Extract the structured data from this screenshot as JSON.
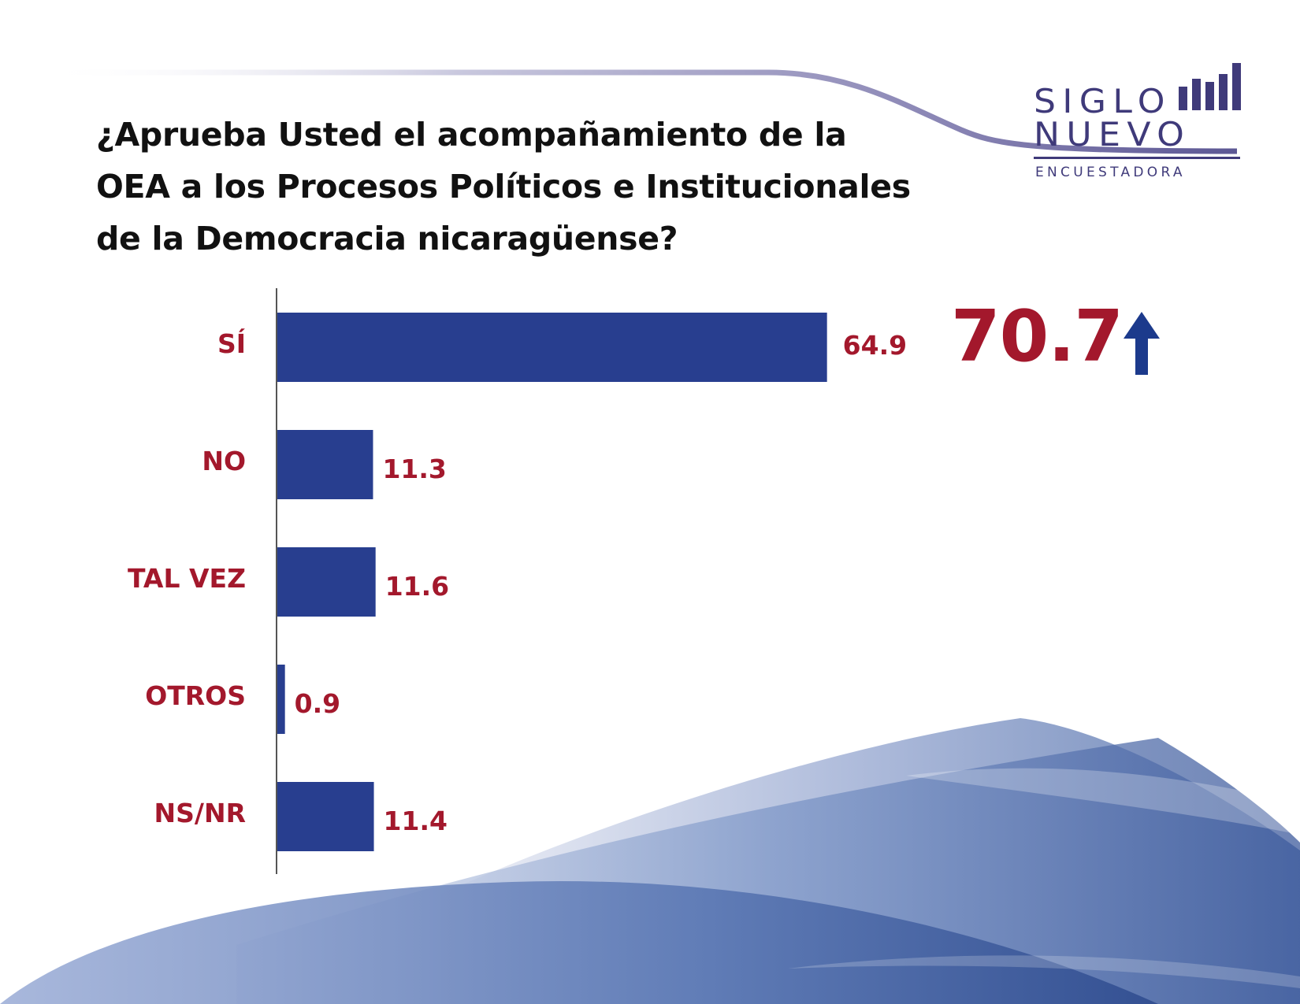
{
  "title_lines": [
    "¿Aprueba Usted el acompañamiento de la",
    "OEA a los Procesos Políticos e Institucionales",
    "de la Democracia nicaragüense?"
  ],
  "logo": {
    "word1": "SIGLO",
    "word2": "NUEVO",
    "word3": "ENCUESTADORA",
    "color": "#3f3a7a"
  },
  "highlight": {
    "value": "70.7",
    "icon": "up-arrow-icon",
    "color": "#a3182c"
  },
  "chart_data": {
    "type": "bar",
    "orientation": "horizontal",
    "categories": [
      "SÍ",
      "NO",
      "TAL VEZ",
      "OTROS",
      "NS/NR"
    ],
    "values": [
      64.9,
      11.3,
      11.6,
      0.9,
      11.4
    ],
    "value_labels": [
      "64.9",
      "11.3",
      "11.6",
      "0.9",
      "11.4"
    ],
    "xlim": [
      0,
      100
    ],
    "grid": false,
    "legend": "none",
    "bar_color": "#283e8f",
    "label_color": "#a3182c"
  }
}
